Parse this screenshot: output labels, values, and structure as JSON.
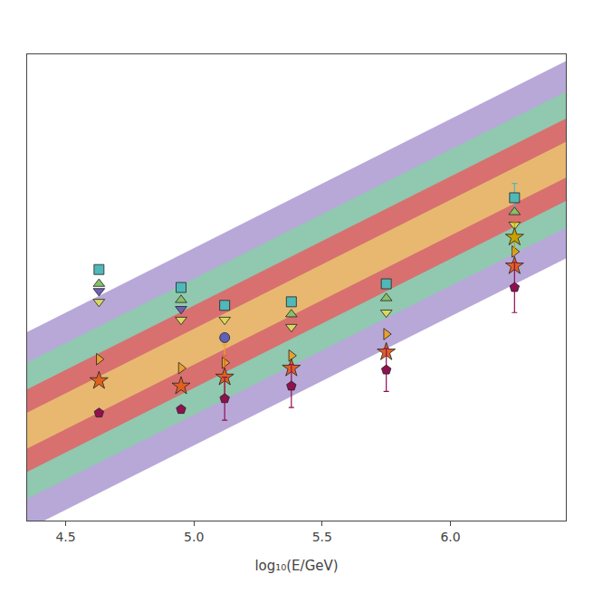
{
  "chart_data": {
    "type": "scatter",
    "xlabel": "log₁₀(E/GeV)",
    "xlim": [
      4.35,
      6.45
    ],
    "ylim": [
      -3.8,
      -1.2
    ],
    "xticks": [
      4.5,
      {
        "value": 5,
        "label": "5.0"
      },
      5.5,
      {
        "value": 6,
        "label": "6.0"
      }
    ],
    "tick_labels": "x",
    "grid": false,
    "band_x": [
      4.0,
      6.6
    ],
    "band_center": [
      -3.55,
      -1.68
    ],
    "bands": [
      {
        "half_width": 0.55,
        "color": "#b8a8d8"
      },
      {
        "half_width": 0.38,
        "color": "#90c8b0"
      },
      {
        "half_width": 0.23,
        "color": "#d87070"
      },
      {
        "half_width": 0.1,
        "color": "#e8b870"
      }
    ],
    "series": [
      {
        "x": [
          4.63,
          4.95,
          5.12,
          5.38,
          5.75,
          6.25
        ],
        "values": [
          -2.4,
          -2.5,
          -2.6,
          -2.58,
          -2.48,
          -2.0
        ],
        "color": "#50b8b8",
        "marker": "square",
        "errors": [
          null,
          null,
          null,
          null,
          null,
          0.08
        ]
      },
      {
        "x": [
          4.63,
          4.95,
          5.38,
          5.75,
          6.25
        ],
        "values": [
          -2.48,
          -2.57,
          -2.65,
          -2.56,
          -2.08
        ],
        "color": "#88c068",
        "marker": "triangle-up"
      },
      {
        "x": [
          4.63,
          4.95
        ],
        "values": [
          -2.52,
          -2.62
        ],
        "color": "#7060b0",
        "marker": "triangle-down"
      },
      {
        "x": [
          4.63,
          4.95,
          5.12,
          5.38,
          5.75,
          6.25
        ],
        "values": [
          -2.58,
          -2.68,
          -2.68,
          -2.72,
          -2.64,
          -2.15
        ],
        "color": "#d8d860",
        "marker": "triangle-down"
      },
      {
        "x": [
          5.12
        ],
        "values": [
          -2.78
        ],
        "color": "#6060b8",
        "marker": "circle"
      },
      {
        "x": [
          4.63,
          4.95,
          5.12,
          5.38,
          5.75,
          6.25
        ],
        "values": [
          -2.9,
          -2.95,
          -2.92,
          -2.88,
          -2.76,
          -2.3
        ],
        "color": "#e8a030",
        "marker": "triangle-right",
        "errors": [
          null,
          null,
          0.1,
          null,
          null,
          null
        ]
      },
      {
        "x": [
          4.63,
          4.95,
          5.12,
          5.38,
          5.75,
          6.25
        ],
        "values": [
          -3.02,
          -3.05,
          -3.0,
          -2.95,
          -2.86,
          -2.38
        ],
        "color": "#e06020",
        "marker": "star",
        "errors": [
          null,
          null,
          0.12,
          null,
          null,
          null
        ]
      },
      {
        "x": [
          4.63,
          4.95,
          5.12,
          5.38,
          5.75,
          6.25
        ],
        "values": [
          -3.2,
          -3.18,
          -3.12,
          -3.05,
          -2.96,
          -2.5
        ],
        "color": "#901050",
        "marker": "pentagon",
        "errors": [
          null,
          null,
          0.12,
          0.12,
          0.12,
          0.14
        ]
      },
      {
        "x": [
          6.25
        ],
        "values": [
          -2.22
        ],
        "color": "#c8a000",
        "marker": "star",
        "errors": [
          0.08
        ]
      }
    ]
  }
}
